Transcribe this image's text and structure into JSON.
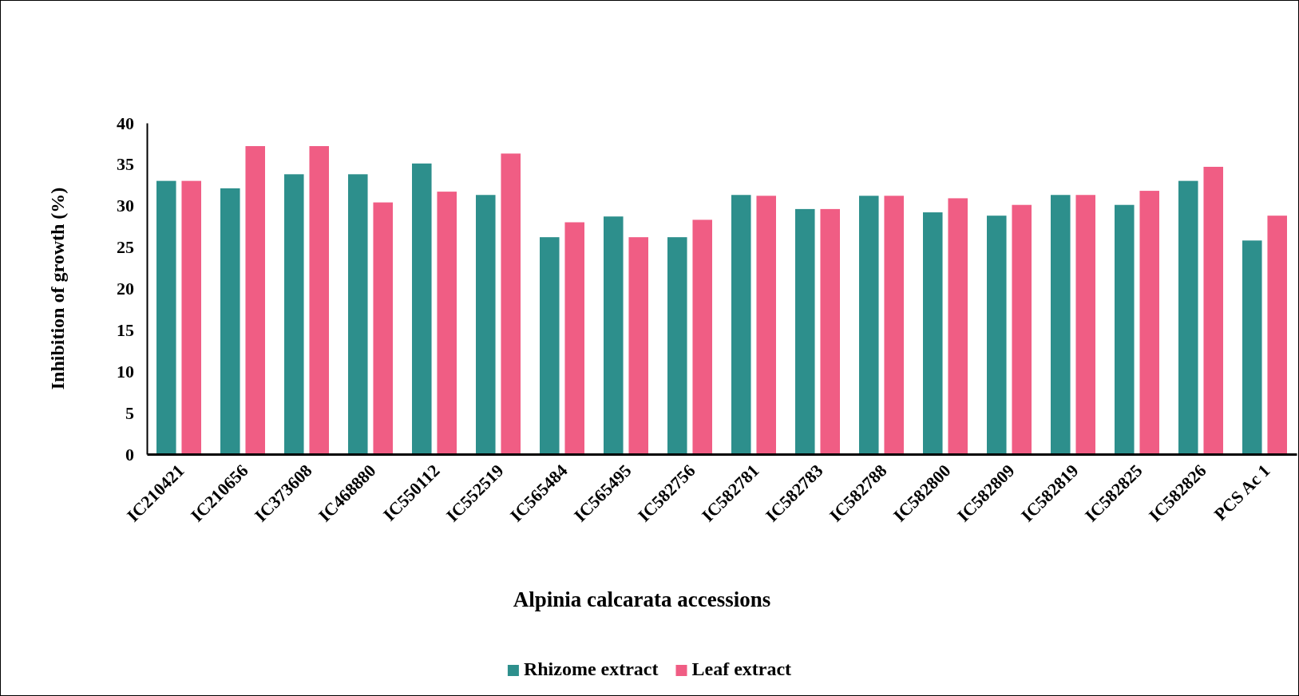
{
  "chart_data": {
    "type": "bar",
    "xlabel": "Alpinia calcarata accessions",
    "ylabel": "Inhibition of growth (%)",
    "categories": [
      "IC210421",
      "IC210656",
      "IC373608",
      "IC468880",
      "IC550112",
      "IC552519",
      "IC565484",
      "IC565495",
      "IC582756",
      "IC582781",
      "IC582783",
      "IC582788",
      "IC582800",
      "IC582809",
      "IC582819",
      "IC582825",
      "IC582826",
      "PCS Ac 1"
    ],
    "series": [
      {
        "name": "Rhizome extract",
        "color": "#2d8f8c",
        "values": [
          33.0,
          32.1,
          33.8,
          33.8,
          35.1,
          31.3,
          26.2,
          28.7,
          26.2,
          31.3,
          29.6,
          31.2,
          29.2,
          28.8,
          31.3,
          30.1,
          33.0,
          25.8
        ]
      },
      {
        "name": "Leaf extract",
        "color": "#f05d84",
        "values": [
          33.0,
          37.2,
          37.2,
          30.4,
          31.7,
          36.3,
          28.0,
          26.2,
          28.3,
          31.2,
          29.6,
          31.2,
          30.9,
          30.1,
          31.3,
          31.8,
          34.7,
          28.8
        ]
      }
    ],
    "ylim": [
      0,
      40
    ],
    "yticks": [
      0,
      5,
      10,
      15,
      20,
      25,
      30,
      35,
      40
    ],
    "grid": false,
    "legend": "bottom"
  }
}
